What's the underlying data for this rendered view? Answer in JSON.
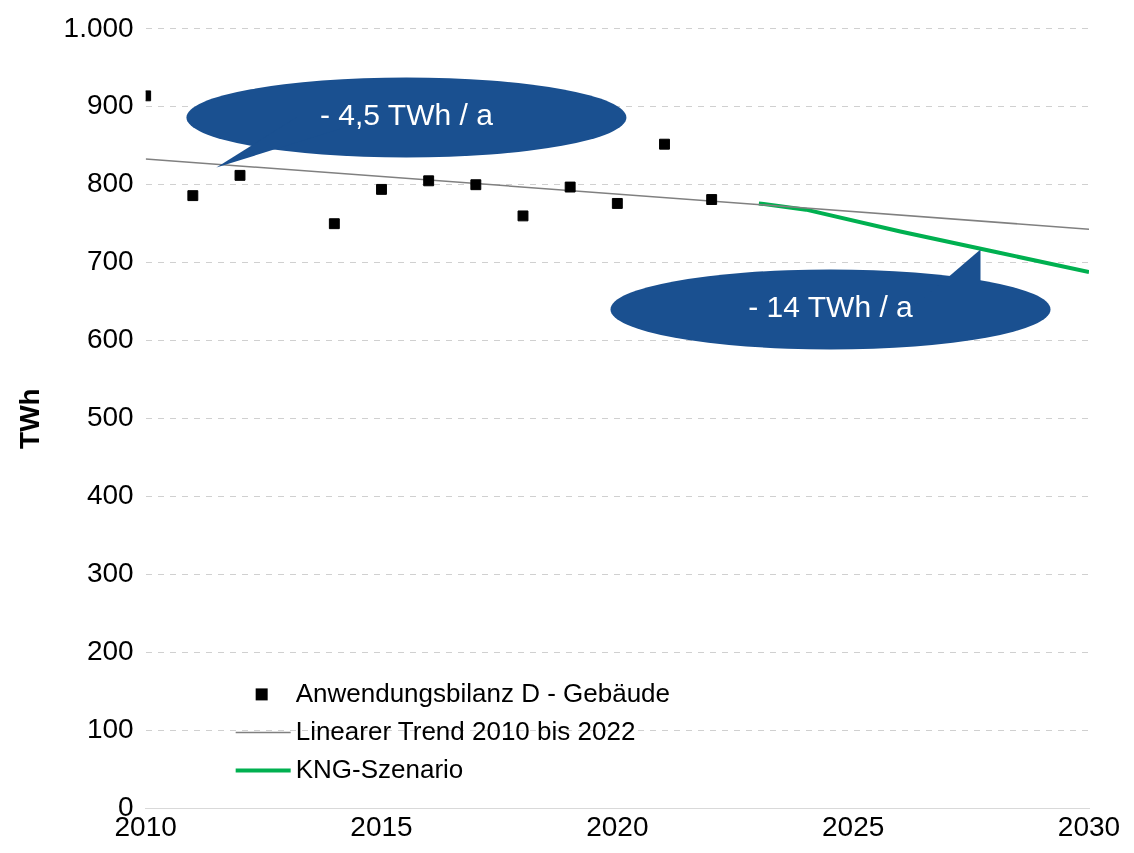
{
  "chart_data": {
    "type": "scatter",
    "ylabel": "TWh",
    "xlim": [
      2010,
      2030
    ],
    "xticks": [
      2010,
      2015,
      2020,
      2025,
      2030
    ],
    "ylim": [
      0,
      1000
    ],
    "yticks": [
      0,
      100,
      200,
      300,
      400,
      500,
      600,
      700,
      800,
      900,
      {
        "value": 1000,
        "label": "1.000"
      }
    ],
    "grid": "y",
    "legend": "bottom left",
    "series": [
      {
        "name": "Anwendungsbilanz D - Gebäude",
        "marker": "square",
        "color": "#000000",
        "x": [
          2010,
          2011,
          2012,
          2014,
          2015,
          2016,
          2017,
          2018,
          2019,
          2020,
          2021,
          2022
        ],
        "values": [
          914,
          786,
          812,
          750,
          794,
          805,
          800,
          760,
          797,
          776,
          852,
          781
        ]
      },
      {
        "name": "Linearer Trend 2010 bis 2022",
        "type": "line",
        "marker": "none",
        "color": "#808080",
        "x": [
          2010,
          2030
        ],
        "values": [
          833,
          743
        ]
      },
      {
        "name": "KNG-Szenario",
        "type": "line",
        "marker": "none",
        "color": "#00b050",
        "x": [
          2023,
          2024,
          2026,
          2028,
          2030
        ],
        "values": [
          776,
          768,
          740,
          714,
          688
        ]
      }
    ],
    "annotations": [
      {
        "text": "- 4,5 TWh / a",
        "x": 2011.5,
        "y": 822
      },
      {
        "text": "- 14 TWh / a",
        "x": 2027.7,
        "y": 717
      }
    ]
  }
}
